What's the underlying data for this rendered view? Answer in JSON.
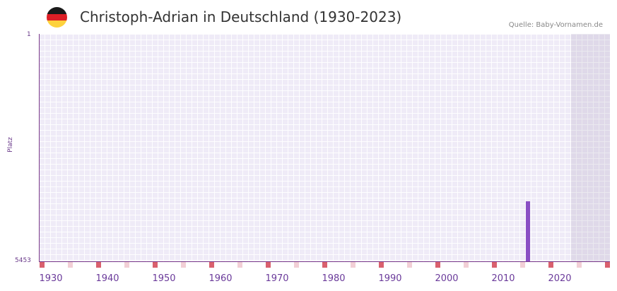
{
  "header": {
    "title": "Christoph-Adrian in Deutschland (1930-2023)",
    "source": "Quelle: Baby-Vornamen.de",
    "flag_colors": [
      "#1a1a1a",
      "#dd1f26",
      "#fdd23d"
    ]
  },
  "colors": {
    "bar": "#8a4fc4",
    "plot_bg": "#efebf7",
    "axis": "#7a3a8a",
    "decade_marker": "#d9606e",
    "half_decade_marker": "#f2cfd6"
  },
  "chart_data": {
    "type": "bar",
    "title": "Christoph-Adrian in Deutschland (1930-2023)",
    "xlabel": "",
    "ylabel": "Platz",
    "y_inverted": true,
    "ylim": [
      1,
      5453
    ],
    "y_tick_labels": [
      "1",
      "5453"
    ],
    "x_tick_labels": [
      "1930",
      "1940",
      "1950",
      "1960",
      "1970",
      "1980",
      "1990",
      "2000",
      "2010",
      "2020"
    ],
    "x_range": [
      1928,
      2028
    ],
    "shaded_from_year": 2022,
    "grid": true,
    "categories": [
      "2014"
    ],
    "values": [
      4005
    ],
    "series": [
      {
        "name": "Platz",
        "points": [
          {
            "year": 2014,
            "rank": 4005
          }
        ]
      }
    ]
  }
}
